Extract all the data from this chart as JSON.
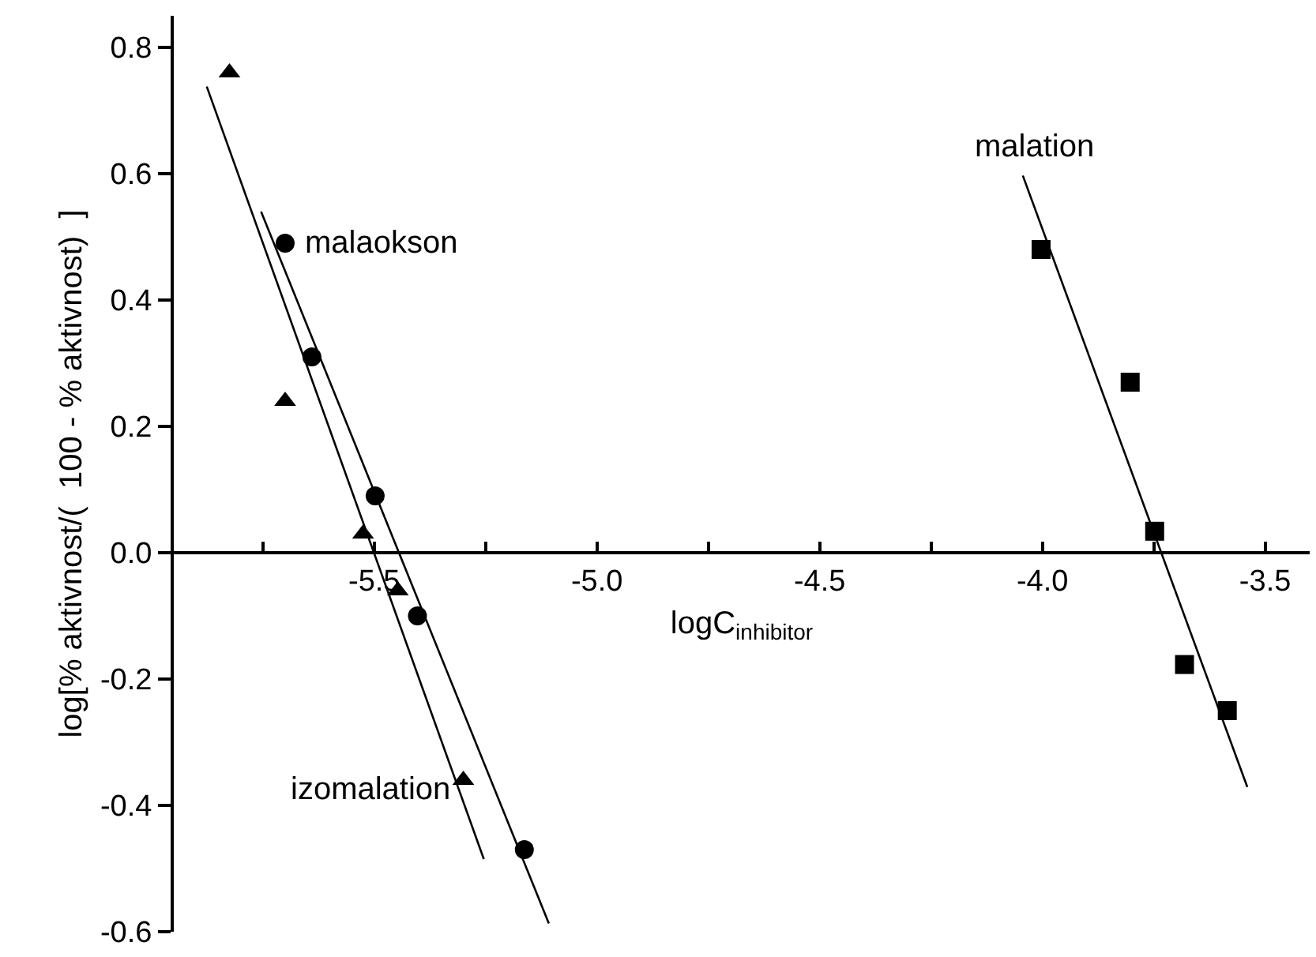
{
  "chart_data": {
    "type": "scatter",
    "xlabel": "logC$_{inhibitor}$",
    "ylabel": "log[% aktivnost/(  100 - % aktivnost)  ]",
    "xlim": [
      -5.95,
      -3.4
    ],
    "ylim": [
      -0.6,
      0.85
    ],
    "xticks": [
      {
        "value": -5.75,
        "label": null
      },
      {
        "value": -5.5,
        "label": "-5.5"
      },
      {
        "value": -5.25,
        "label": null
      },
      {
        "value": -5.0,
        "label": "-5.0"
      },
      {
        "value": -4.75,
        "label": null
      },
      {
        "value": -4.5,
        "label": "-4.5"
      },
      {
        "value": -4.25,
        "label": null
      },
      {
        "value": -4.0,
        "label": "-4.0"
      },
      {
        "value": -3.75,
        "label": null
      },
      {
        "value": -3.5,
        "label": "-3.5"
      }
    ],
    "yticks": [
      {
        "value": -0.6,
        "label": "-0.6"
      },
      {
        "value": -0.4,
        "label": "-0.4"
      },
      {
        "value": -0.2,
        "label": "-0.2"
      },
      {
        "value": 0.0,
        "label": "0.0"
      },
      0.2,
      0.4,
      0.6,
      0.8
    ],
    "series": [
      {
        "marker": "triangle",
        "color": "#000000",
        "x": [
          -5.825,
          -5.7,
          -5.525,
          -5.447,
          -5.3
        ],
        "values": [
          0.76,
          0.24,
          0.03,
          -0.06,
          -0.36
        ]
      },
      {
        "marker": "circle",
        "color": "#000000",
        "x": [
          -5.7,
          -5.64,
          -5.498,
          -5.403,
          -5.163
        ],
        "values": [
          0.49,
          0.31,
          0.09,
          -0.1,
          -0.47
        ]
      },
      {
        "marker": "square",
        "color": "#000000",
        "x": [
          -4.003,
          -3.803,
          -3.748,
          -3.681,
          -3.585
        ],
        "values": [
          0.48,
          0.27,
          0.034,
          -0.177,
          -0.25
        ]
      },
      {
        "type": "line",
        "marker": "none",
        "color": "#000000",
        "x": [
          -5.876,
          -5.254
        ],
        "values": [
          0.738,
          -0.485
        ]
      },
      {
        "type": "line",
        "marker": "none",
        "color": "#000000",
        "x": [
          -5.754,
          -5.108
        ],
        "values": [
          0.54,
          -0.587
        ]
      },
      {
        "type": "line",
        "marker": "none",
        "color": "#000000",
        "x": [
          -4.044,
          -3.54
        ],
        "values": [
          0.597,
          -0.371
        ]
      }
    ],
    "annotations": [
      "malaokson",
      "izomalation",
      "malation"
    ]
  }
}
